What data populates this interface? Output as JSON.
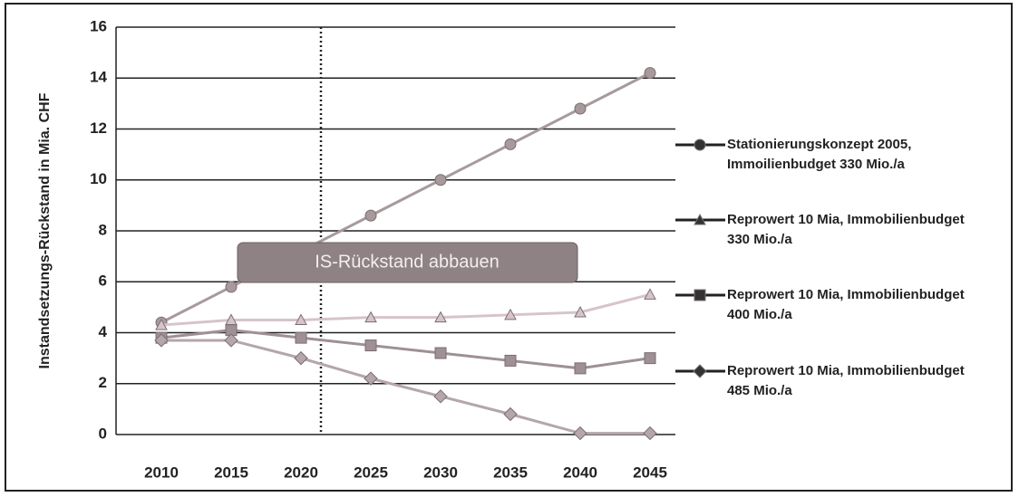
{
  "chart_data": {
    "type": "line",
    "y_label": "Instandsetzungs-Rückstand  in Mia. CHF",
    "annotation": "IS-Rückstand abbauen",
    "categories": [
      "2010",
      "2015",
      "2020",
      "2025",
      "2030",
      "2035",
      "2040",
      "2045"
    ],
    "ylim": [
      0,
      16
    ],
    "yticks": [
      0,
      2,
      4,
      6,
      8,
      10,
      12,
      14,
      16
    ],
    "grid": true,
    "series": [
      {
        "name": "Stationierungskonzept 2005, Immoilienbudget 330 Mio./a",
        "color": "#a89a9c",
        "marker": "circle",
        "values": [
          4.4,
          5.8,
          7.2,
          8.6,
          10.0,
          11.4,
          12.8,
          14.2
        ]
      },
      {
        "name": "Reprowert 10 Mia, Immobilienbudget 330 Mio./a",
        "color": "#d6c4ca",
        "marker": "triangle",
        "values": [
          4.3,
          4.5,
          4.5,
          4.6,
          4.6,
          4.7,
          4.8,
          5.5
        ]
      },
      {
        "name": "Reprowert 10 Mia, Immobilienbudget 400 Mio./a",
        "color": "#9e9094",
        "marker": "square",
        "values": [
          3.8,
          4.1,
          3.8,
          3.5,
          3.2,
          2.9,
          2.6,
          3.0
        ]
      },
      {
        "name": "Reprowert 10 Mia, Immobilienbudget 485 Mio./a",
        "color": "#b4a6aa",
        "marker": "diamond",
        "values": [
          3.7,
          3.7,
          3.0,
          2.2,
          1.5,
          0.8,
          0.05,
          0.05
        ]
      }
    ]
  }
}
